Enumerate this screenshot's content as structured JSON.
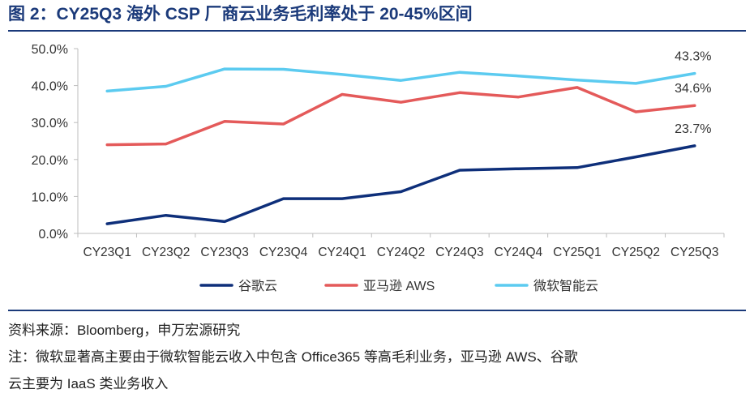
{
  "title": "图 2：CY25Q3 海外 CSP 厂商云业务毛利率处于 20-45%区间",
  "source": "资料来源：Bloomberg，申万宏源研究",
  "note_line1": "注：微软显著高主要由于微软智能云收入中包含 Office365 等高毛利业务，亚马逊 AWS、谷歌",
  "note_line2": "云主要为 IaaS 类业务收入",
  "chart_data": {
    "type": "line",
    "title": "",
    "xlabel": "",
    "ylabel": "",
    "categories": [
      "CY23Q1",
      "CY23Q2",
      "CY23Q3",
      "CY23Q4",
      "CY24Q1",
      "CY24Q2",
      "CY24Q3",
      "CY24Q4",
      "CY25Q1",
      "CY25Q2",
      "CY25Q3"
    ],
    "ylim": [
      0,
      50
    ],
    "yticks": [
      0,
      10,
      20,
      30,
      40,
      50
    ],
    "ytick_labels": [
      "0.0%",
      "10.0%",
      "20.0%",
      "30.0%",
      "40.0%",
      "50.0%"
    ],
    "grid": false,
    "legend_position": "bottom",
    "series": [
      {
        "name": "谷歌云",
        "color": "#0e2f7a",
        "values": [
          2.6,
          4.9,
          3.2,
          9.4,
          9.4,
          11.3,
          17.1,
          17.5,
          17.8,
          20.7,
          23.7
        ],
        "end_label": "23.7%"
      },
      {
        "name": "亚马逊 AWS",
        "color": "#e45a5a",
        "values": [
          24.0,
          24.2,
          30.3,
          29.6,
          37.6,
          35.5,
          38.1,
          36.9,
          39.5,
          32.9,
          34.6
        ],
        "end_label": "34.6%"
      },
      {
        "name": "微软智能云",
        "color": "#5ccbf0",
        "values": [
          38.5,
          39.8,
          44.5,
          44.4,
          43.0,
          41.4,
          43.6,
          42.6,
          41.5,
          40.6,
          43.3
        ],
        "end_label": "43.3%"
      }
    ]
  }
}
